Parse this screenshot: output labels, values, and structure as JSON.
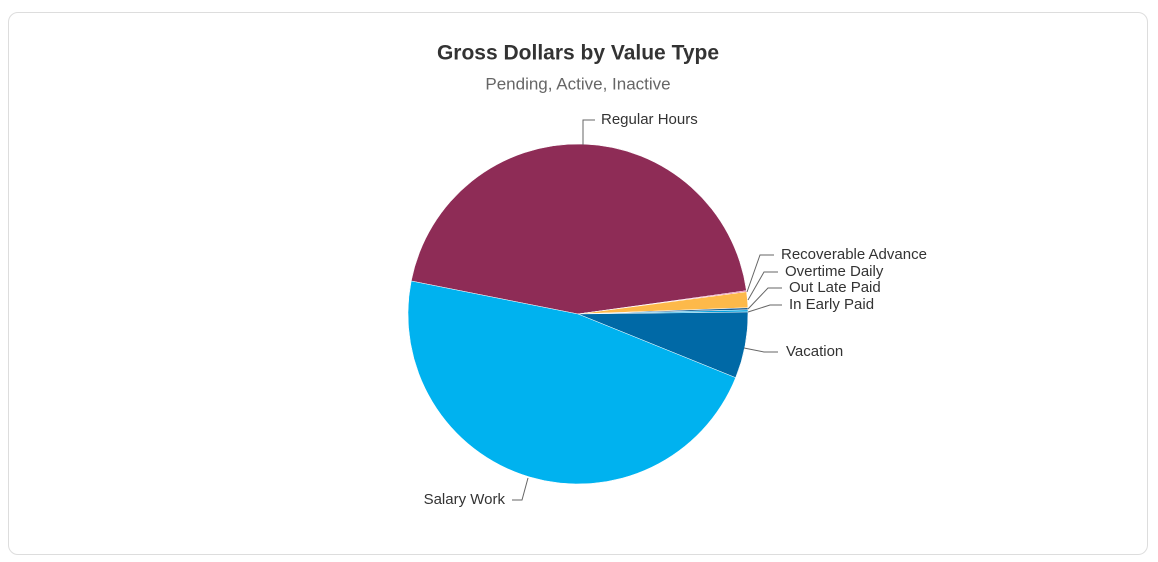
{
  "chart_data": {
    "type": "pie",
    "title": "Gross Dollars by Value Type",
    "subtitle": "Pending, Active, Inactive",
    "categories": [
      "Regular Hours",
      "Recoverable Advance",
      "Overtime Daily",
      "Out Late Paid",
      "In Early Paid",
      "Vacation",
      "Salary Work"
    ],
    "values": [
      44.7,
      0.1,
      1.5,
      0.2,
      0.2,
      6.3,
      47.0
    ],
    "colors": [
      "#8e2c56",
      "#e0357a",
      "#fdb94a",
      "#1c5f91",
      "#00a3e0",
      "#0069a6",
      "#00b2ef"
    ]
  }
}
